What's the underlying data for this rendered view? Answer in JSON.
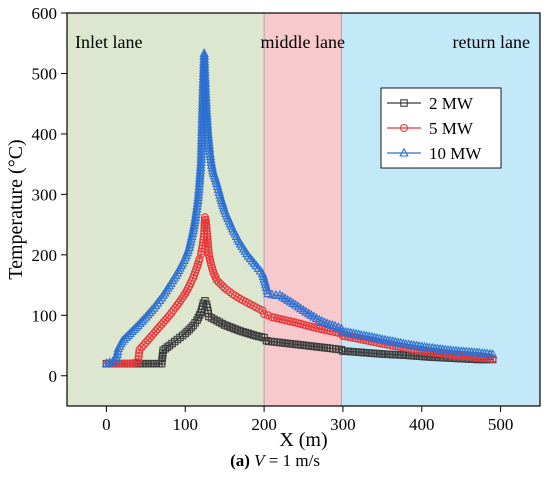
{
  "chart_data": {
    "type": "scatter",
    "xlabel": "X (m)",
    "ylabel": "Temperature (°C)",
    "xlim": [
      -50,
      550
    ],
    "ylim": [
      -50,
      600
    ],
    "x_ticks": [
      0,
      100,
      200,
      300,
      400,
      500
    ],
    "y_ticks": [
      0,
      100,
      200,
      300,
      400,
      500,
      600
    ],
    "legend_position": "top-right",
    "regions": [
      {
        "label": "Inlet lane",
        "x_start": -50,
        "x_end": 200,
        "color": "#dde7cf"
      },
      {
        "label": "middle lane",
        "x_start": 200,
        "x_end": 298,
        "color": "#f7c9cc"
      },
      {
        "label": "return lane",
        "x_start": 298,
        "x_end": 550,
        "color": "#c3e8f7"
      }
    ],
    "series": [
      {
        "name": "2 MW",
        "marker": "square",
        "color": "#3c3c3c",
        "x": [
          0,
          70,
          72,
          80,
          90,
          100,
          110,
          115,
          120,
          123,
          125,
          127,
          130,
          140,
          150,
          160,
          170,
          180,
          190,
          200,
          203,
          206,
          220,
          240,
          260,
          280,
          298,
          300,
          320,
          350,
          380,
          410,
          440,
          470,
          490
        ],
        "y": [
          20,
          20,
          42,
          50,
          60,
          70,
          83,
          92,
          105,
          120,
          124,
          118,
          98,
          91,
          84,
          79,
          74,
          70,
          66,
          63,
          58,
          57,
          55,
          52,
          49,
          46,
          43,
          41,
          39,
          36,
          34,
          31,
          29,
          27,
          27
        ]
      },
      {
        "name": "5 MW",
        "marker": "circle",
        "color": "#e8383b",
        "x": [
          0,
          30,
          40,
          42,
          50,
          60,
          70,
          80,
          90,
          100,
          105,
          110,
          115,
          118,
          120,
          122,
          124,
          125,
          126,
          128,
          130,
          133,
          136,
          140,
          150,
          160,
          170,
          180,
          190,
          198,
          200,
          205,
          210,
          220,
          240,
          260,
          280,
          298,
          300,
          320,
          350,
          380,
          410,
          440,
          470,
          490
        ],
        "y": [
          20,
          20,
          22,
          43,
          55,
          70,
          85,
          100,
          117,
          136,
          148,
          162,
          180,
          193,
          201,
          215,
          235,
          262,
          258,
          230,
          200,
          183,
          170,
          158,
          145,
          135,
          127,
          120,
          113,
          108,
          102,
          100,
          97,
          94,
          88,
          81,
          75,
          70,
          66,
          61,
          53,
          46,
          39,
          34,
          31,
          28
        ]
      },
      {
        "name": "10 MW",
        "marker": "triangle",
        "color": "#2b6fd1",
        "x": [
          0,
          12,
          15,
          20,
          30,
          40,
          50,
          60,
          70,
          80,
          90,
          100,
          105,
          110,
          113,
          116,
          118,
          120,
          121,
          122,
          123,
          124,
          125,
          127,
          129,
          131,
          133,
          135,
          140,
          145,
          150,
          160,
          170,
          180,
          190,
          198,
          200,
          205,
          210,
          215,
          220,
          230,
          240,
          250,
          260,
          270,
          280,
          290,
          298,
          300,
          320,
          350,
          380,
          410,
          440,
          470,
          490
        ],
        "y": [
          20,
          25,
          45,
          57,
          70,
          83,
          97,
          112,
          129,
          149,
          170,
          195,
          212,
          240,
          262,
          290,
          318,
          353,
          398,
          450,
          495,
          533,
          497,
          438,
          399,
          372,
          353,
          339,
          318,
          294,
          273,
          243,
          218,
          198,
          182,
          169,
          160,
          136,
          134,
          133,
          133,
          125,
          117,
          108,
          100,
          92,
          86,
          82,
          78,
          73,
          68,
          60,
          52,
          46,
          41,
          38,
          35
        ]
      }
    ],
    "caption": {
      "label": "(a)",
      "variable": "V",
      "text": " = 1 m/s"
    }
  }
}
